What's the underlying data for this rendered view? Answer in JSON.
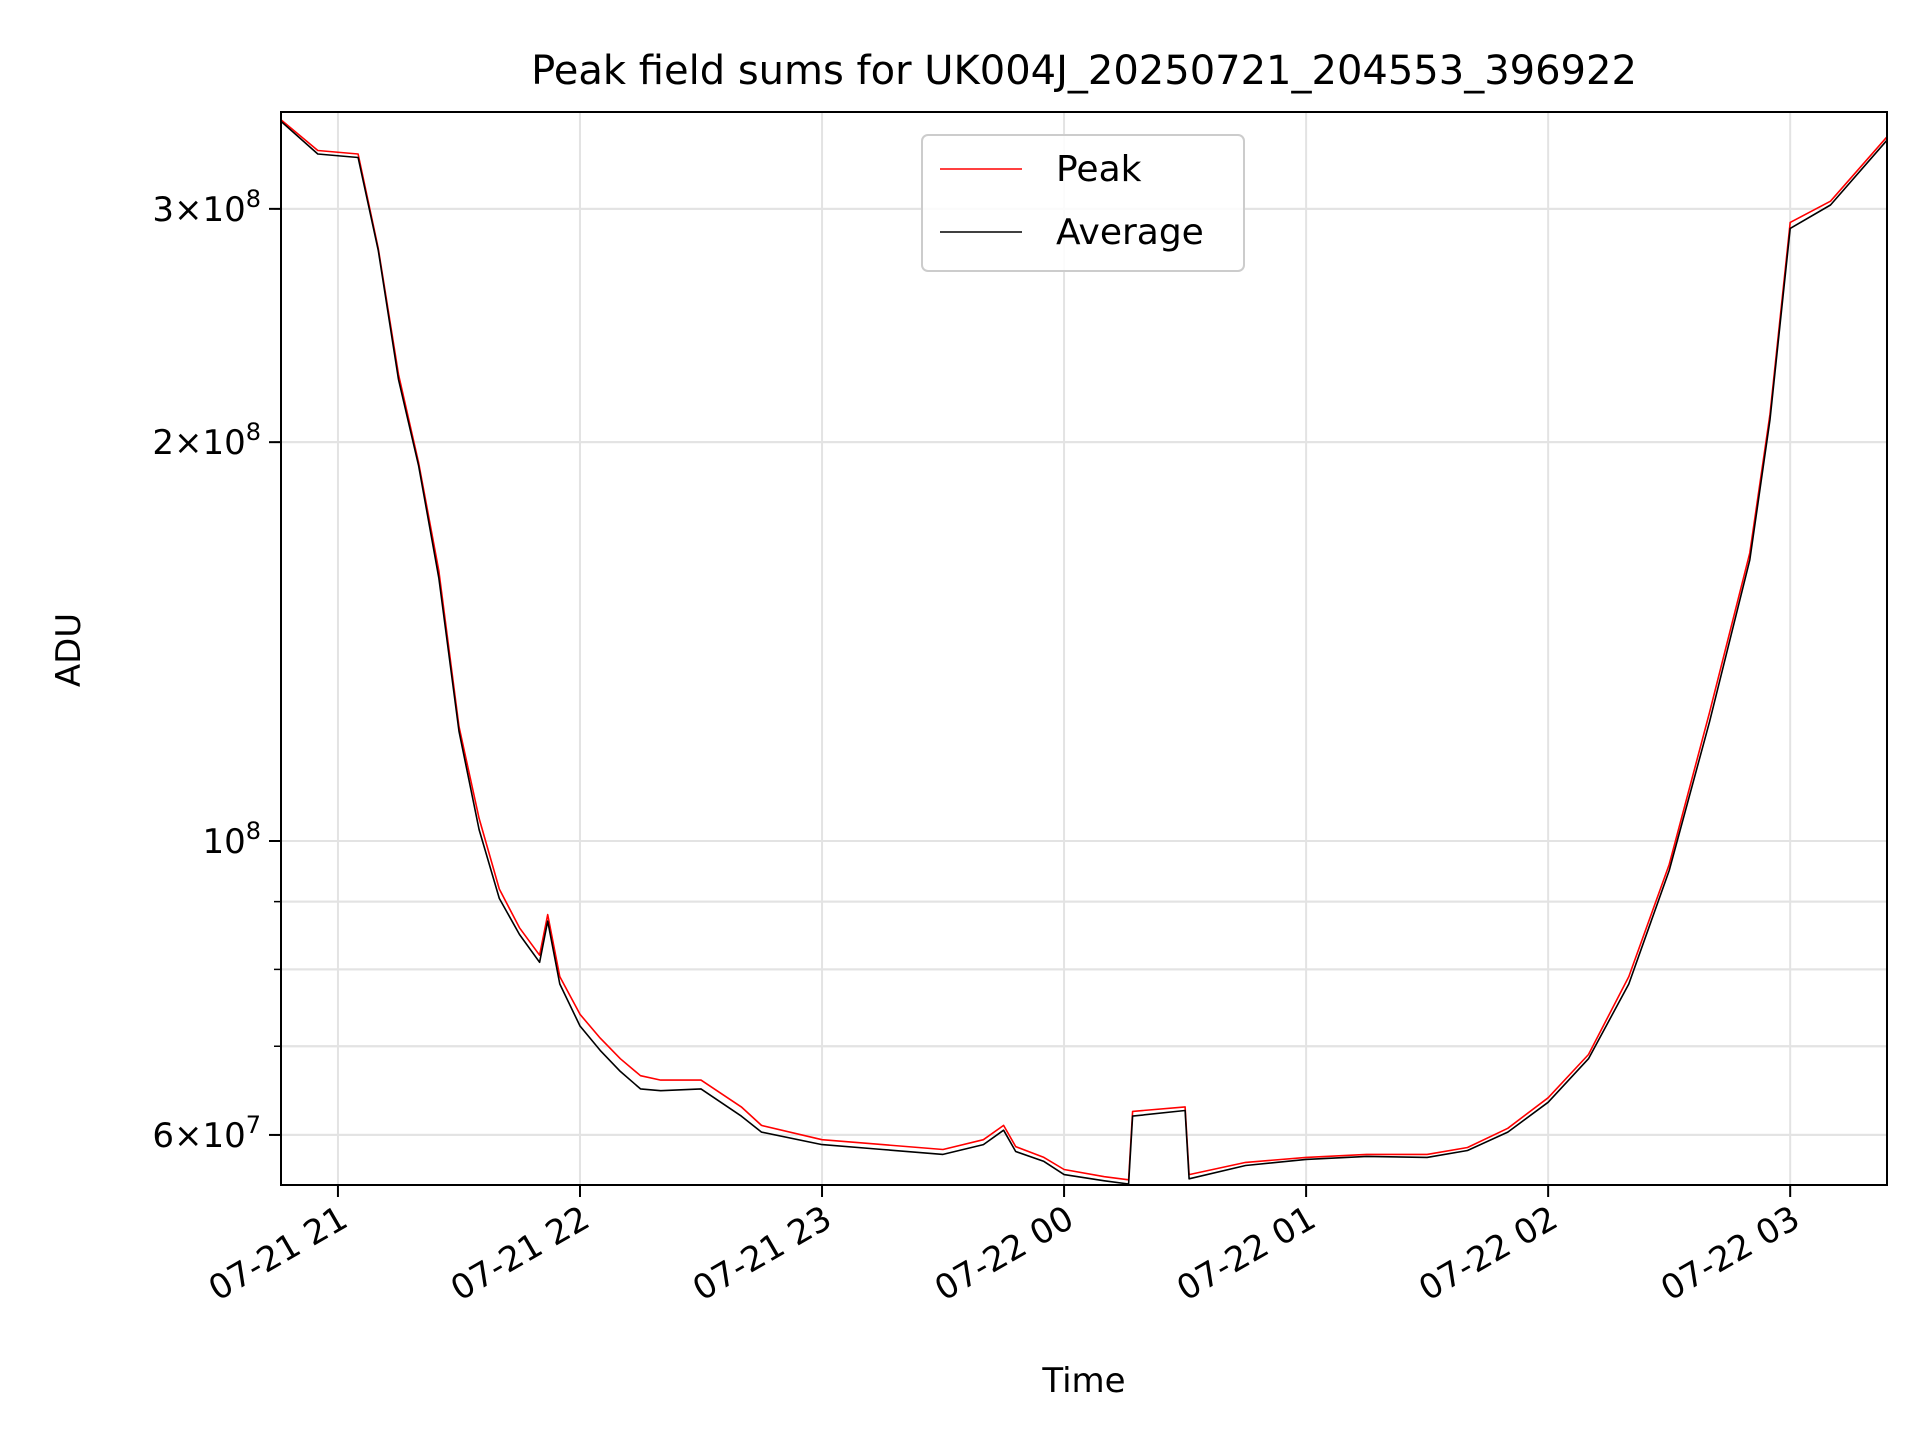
{
  "chart_data": {
    "type": "line",
    "title": "Peak field sums for UK004J_20250721_204553_396922",
    "xlabel": "Time",
    "ylabel": "ADU",
    "yscale": "log",
    "xlim": [
      "2025-07-21 20:45:53",
      "2025-07-22 03:24:00"
    ],
    "ylim": [
      55000000,
      355000000
    ],
    "x_ticks": [
      {
        "value": "2025-07-21 21:00",
        "label": "07-21 21"
      },
      {
        "value": "2025-07-21 22:00",
        "label": "07-21 22"
      },
      {
        "value": "2025-07-21 23:00",
        "label": "07-21 23"
      },
      {
        "value": "2025-07-22 00:00",
        "label": "07-22 00"
      },
      {
        "value": "2025-07-22 01:00",
        "label": "07-22 01"
      },
      {
        "value": "2025-07-22 02:00",
        "label": "07-22 02"
      },
      {
        "value": "2025-07-22 03:00",
        "label": "07-22 03"
      }
    ],
    "y_ticks": [
      {
        "value": 60000000,
        "mant": "6",
        "exp": "7"
      },
      {
        "value": 100000000,
        "mant": "",
        "exp": "8"
      },
      {
        "value": 200000000,
        "mant": "2",
        "exp": "8"
      },
      {
        "value": 300000000,
        "mant": "3",
        "exp": "8"
      }
    ],
    "y_minor_ticks": [
      60000000,
      70000000,
      80000000,
      90000000,
      200000000,
      300000000
    ],
    "grid": true,
    "legend_position": "top-center",
    "series": [
      {
        "name": "Peak",
        "color": "#ff0000",
        "x": [
          "2025-07-21 20:46",
          "2025-07-21 20:55",
          "2025-07-21 21:05",
          "2025-07-21 21:10",
          "2025-07-21 21:15",
          "2025-07-21 21:20",
          "2025-07-21 21:25",
          "2025-07-21 21:30",
          "2025-07-21 21:35",
          "2025-07-21 21:40",
          "2025-07-21 21:45",
          "2025-07-21 21:50",
          "2025-07-21 21:52",
          "2025-07-21 21:55",
          "2025-07-21 22:00",
          "2025-07-21 22:05",
          "2025-07-21 22:10",
          "2025-07-21 22:15",
          "2025-07-21 22:20",
          "2025-07-21 22:30",
          "2025-07-21 22:40",
          "2025-07-21 22:45",
          "2025-07-21 23:00",
          "2025-07-21 23:15",
          "2025-07-21 23:30",
          "2025-07-21 23:40",
          "2025-07-21 23:45",
          "2025-07-21 23:48",
          "2025-07-21 23:55",
          "2025-07-22 00:00",
          "2025-07-22 00:10",
          "2025-07-22 00:16",
          "2025-07-22 00:17",
          "2025-07-22 00:30",
          "2025-07-22 00:31",
          "2025-07-22 00:45",
          "2025-07-22 01:00",
          "2025-07-22 01:15",
          "2025-07-22 01:30",
          "2025-07-22 01:40",
          "2025-07-22 01:50",
          "2025-07-22 02:00",
          "2025-07-22 02:10",
          "2025-07-22 02:20",
          "2025-07-22 02:30",
          "2025-07-22 02:40",
          "2025-07-22 02:50",
          "2025-07-22 02:55",
          "2025-07-22 03:00",
          "2025-07-22 03:10",
          "2025-07-22 03:24"
        ],
        "values": [
          350000000,
          332000000,
          330000000,
          280000000,
          225000000,
          193000000,
          160000000,
          122000000,
          104000000,
          92000000,
          86000000,
          82000000,
          88000000,
          79000000,
          74000000,
          71000000,
          68500000,
          66500000,
          66000000,
          66000000,
          63000000,
          61000000,
          59500000,
          59000000,
          58500000,
          59500000,
          61000000,
          58800000,
          57700000,
          56500000,
          55800000,
          55500000,
          62500000,
          63000000,
          56000000,
          57200000,
          57700000,
          58000000,
          58000000,
          58700000,
          60700000,
          64000000,
          69000000,
          79000000,
          96000000,
          125000000,
          165000000,
          210000000,
          293000000,
          304000000,
          340000000
        ]
      },
      {
        "name": "Average",
        "color": "#000000",
        "x": [
          "2025-07-21 20:46",
          "2025-07-21 20:55",
          "2025-07-21 21:05",
          "2025-07-21 21:10",
          "2025-07-21 21:15",
          "2025-07-21 21:20",
          "2025-07-21 21:25",
          "2025-07-21 21:30",
          "2025-07-21 21:35",
          "2025-07-21 21:40",
          "2025-07-21 21:45",
          "2025-07-21 21:50",
          "2025-07-21 21:52",
          "2025-07-21 21:55",
          "2025-07-21 22:00",
          "2025-07-21 22:05",
          "2025-07-21 22:10",
          "2025-07-21 22:15",
          "2025-07-21 22:20",
          "2025-07-21 22:30",
          "2025-07-21 22:40",
          "2025-07-21 22:45",
          "2025-07-21 23:00",
          "2025-07-21 23:15",
          "2025-07-21 23:30",
          "2025-07-21 23:40",
          "2025-07-21 23:45",
          "2025-07-21 23:48",
          "2025-07-21 23:55",
          "2025-07-22 00:00",
          "2025-07-22 00:10",
          "2025-07-22 00:16",
          "2025-07-22 00:17",
          "2025-07-22 00:30",
          "2025-07-22 00:31",
          "2025-07-22 00:45",
          "2025-07-22 01:00",
          "2025-07-22 01:15",
          "2025-07-22 01:30",
          "2025-07-22 01:40",
          "2025-07-22 01:50",
          "2025-07-22 02:00",
          "2025-07-22 02:10",
          "2025-07-22 02:20",
          "2025-07-22 02:30",
          "2025-07-22 02:40",
          "2025-07-22 02:50",
          "2025-07-22 02:55",
          "2025-07-22 03:00",
          "2025-07-22 03:10",
          "2025-07-22 03:24"
        ],
        "values": [
          349000000,
          330000000,
          328000000,
          279000000,
          223000000,
          192000000,
          158000000,
          121000000,
          102000000,
          90500000,
          85000000,
          81000000,
          87000000,
          78000000,
          72500000,
          69500000,
          67000000,
          65000000,
          64800000,
          65000000,
          62000000,
          60300000,
          59000000,
          58500000,
          58000000,
          59000000,
          60500000,
          58300000,
          57300000,
          56000000,
          55400000,
          55100000,
          62000000,
          62600000,
          55600000,
          56900000,
          57500000,
          57800000,
          57700000,
          58400000,
          60300000,
          63500000,
          68500000,
          78000000,
          95000000,
          123000000,
          163000000,
          208000000,
          290000000,
          302000000,
          338000000
        ]
      }
    ]
  }
}
